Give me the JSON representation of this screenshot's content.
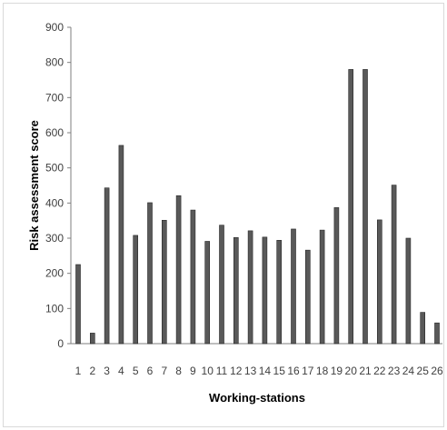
{
  "chart_data": {
    "type": "bar",
    "title": "",
    "xlabel": "Working-stations",
    "ylabel": "Risk assessment score",
    "ylim": [
      0,
      900
    ],
    "yticks": [
      0,
      100,
      200,
      300,
      400,
      500,
      600,
      700,
      800,
      900
    ],
    "grid": false,
    "categories": [
      "1",
      "2",
      "3",
      "4",
      "5",
      "6",
      "7",
      "8",
      "9",
      "10",
      "11",
      "12",
      "13",
      "14",
      "15",
      "16",
      "17",
      "18",
      "19",
      "20",
      "21",
      "22",
      "23",
      "24",
      "25",
      "26"
    ],
    "values": [
      225,
      30,
      443,
      564,
      308,
      401,
      351,
      421,
      380,
      291,
      337,
      302,
      321,
      303,
      294,
      326,
      266,
      323,
      387,
      780,
      780,
      352,
      451,
      300,
      89,
      59
    ],
    "bar_color": "#595959"
  }
}
